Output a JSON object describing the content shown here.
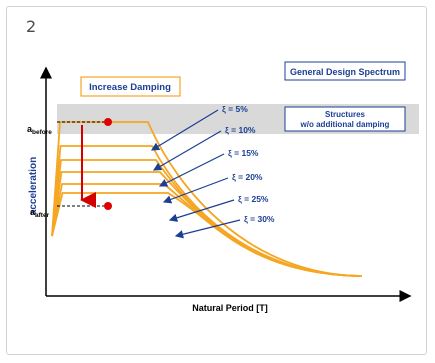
{
  "step_number": "2",
  "increase_damping_label": "Increase Damping",
  "general_design_spectrum_label": "General Design Spectrum",
  "structures_note_line1": "Structures",
  "structures_note_line2": "w/o additional damping",
  "axis_y_label": "acceleration",
  "axis_x_label": "Natural Period [T]",
  "a_before": {
    "base": "a",
    "sub": "before"
  },
  "a_after": {
    "base": "a",
    "sub": "after"
  },
  "damping_curves": [
    {
      "label": "ξ = 5%"
    },
    {
      "label": "ξ = 10%"
    },
    {
      "label": "ξ = 15%"
    },
    {
      "label": "ξ = 20%"
    },
    {
      "label": "ξ = 25%"
    },
    {
      "label": "ξ = 30%"
    }
  ],
  "colors": {
    "curve": "#f5a623",
    "arrow_blue": "#1c3f94",
    "reduction_arrow": "#d40000",
    "marker": "#e00000",
    "band": "#d9d9d9"
  }
}
